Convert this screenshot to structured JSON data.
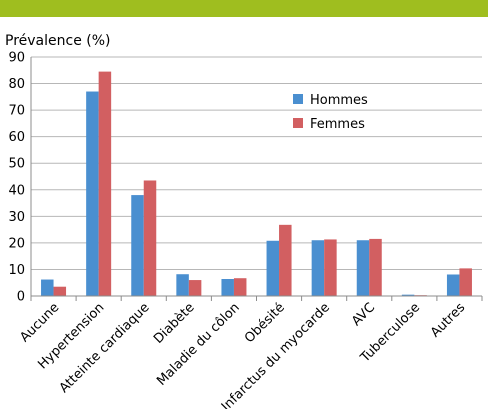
{
  "colors": {
    "top_bar": "#9fbe1f",
    "hommes": "#4a8fd0",
    "femmes": "#d25f61",
    "axis": "#8c8c8c",
    "grid": "#b7b7b7"
  },
  "chart_data": {
    "type": "bar",
    "title": "",
    "ylabel": "Prévalence (%)",
    "xlabel": "",
    "ylim": [
      0,
      90
    ],
    "yticks": [
      "0",
      "10",
      "20",
      "30",
      "40",
      "50",
      "60",
      "70",
      "80",
      "90"
    ],
    "grid": true,
    "legend_position": "top-right",
    "categories": [
      "Aucune",
      "Hypertension",
      "Atteinte cardiaque",
      "Diabète",
      "Maladie du côlon",
      "Obésité",
      "Infarctus du myocarde",
      "AVC",
      "Tuberculose",
      "Autres"
    ],
    "series": [
      {
        "name": "Hommes",
        "values": [
          6.2,
          77.0,
          38.0,
          8.2,
          6.4,
          20.8,
          21.0,
          21.0,
          0.5,
          8.1
        ]
      },
      {
        "name": "Femmes",
        "values": [
          3.5,
          84.5,
          43.5,
          6.0,
          6.7,
          26.8,
          21.3,
          21.5,
          0.3,
          10.4
        ]
      }
    ]
  }
}
